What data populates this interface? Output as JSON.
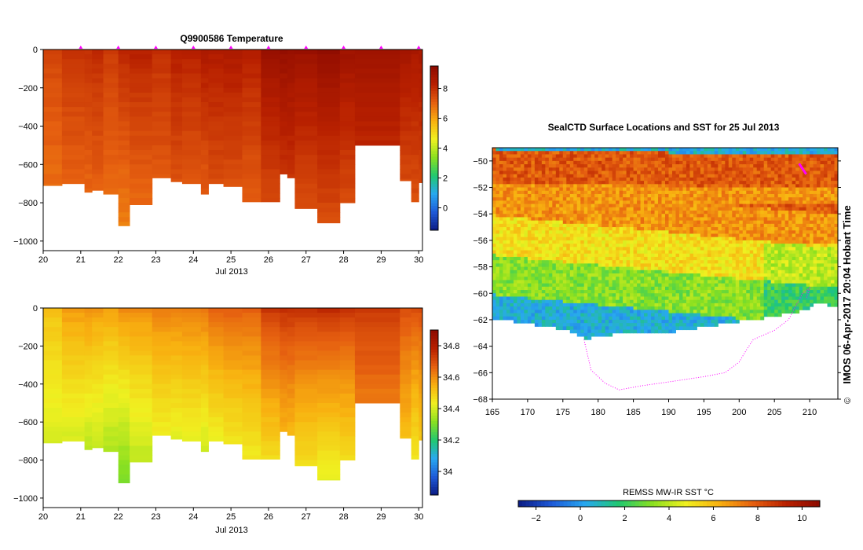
{
  "colors": {
    "colormap": [
      "#0a1a82",
      "#1e5ad8",
      "#28a8f0",
      "#20c870",
      "#8ae020",
      "#f0f020",
      "#f8b010",
      "#e66010",
      "#b82000",
      "#8c0a00"
    ],
    "marker": "#ff00ff",
    "no_data": "#ffffff",
    "frame": "#000000"
  },
  "chart_data": [
    {
      "id": "temperature-section",
      "type": "heatmap",
      "title": "Q9900586  Temperature",
      "xlabel": "Jul 2013",
      "ylabel": "",
      "x_ticks": [
        "20",
        "21",
        "22",
        "23",
        "24",
        "25",
        "26",
        "27",
        "28",
        "29",
        "30"
      ],
      "y_ticks": [
        "0",
        "−200",
        "−400",
        "−600",
        "−800",
        "−1000"
      ],
      "xlim": [
        20,
        30.1
      ],
      "ylim": [
        -1050,
        0
      ],
      "colorbar": {
        "range": [
          -1.5,
          9.5
        ],
        "ticks": [
          "0",
          "2",
          "4",
          "6",
          "8"
        ]
      },
      "profile_markers_day": [
        21,
        22,
        23,
        24,
        25,
        26,
        27,
        28,
        29,
        30
      ],
      "profiles": [
        {
          "start": 20.0,
          "end": 20.5,
          "max_depth": 710,
          "surface": 7.6,
          "bottom": 6.7
        },
        {
          "start": 20.5,
          "end": 21.1,
          "max_depth": 700,
          "surface": 7.9,
          "bottom": 6.9
        },
        {
          "start": 21.1,
          "end": 21.3,
          "max_depth": 745,
          "surface": 8.0,
          "bottom": 6.8
        },
        {
          "start": 21.3,
          "end": 21.6,
          "max_depth": 735,
          "surface": 8.1,
          "bottom": 6.9
        },
        {
          "start": 21.6,
          "end": 22.0,
          "max_depth": 755,
          "surface": 7.8,
          "bottom": 6.8
        },
        {
          "start": 22.0,
          "end": 22.3,
          "max_depth": 920,
          "surface": 8.2,
          "bottom": 6.6
        },
        {
          "start": 22.3,
          "end": 22.9,
          "max_depth": 810,
          "surface": 8.3,
          "bottom": 6.8
        },
        {
          "start": 22.9,
          "end": 23.4,
          "max_depth": 670,
          "surface": 8.0,
          "bottom": 7.0
        },
        {
          "start": 23.4,
          "end": 23.7,
          "max_depth": 690,
          "surface": 8.4,
          "bottom": 7.1
        },
        {
          "start": 23.7,
          "end": 24.2,
          "max_depth": 700,
          "surface": 8.3,
          "bottom": 7.0
        },
        {
          "start": 24.2,
          "end": 24.4,
          "max_depth": 755,
          "surface": 8.6,
          "bottom": 6.9
        },
        {
          "start": 24.4,
          "end": 24.8,
          "max_depth": 700,
          "surface": 8.5,
          "bottom": 7.2
        },
        {
          "start": 24.8,
          "end": 25.3,
          "max_depth": 715,
          "surface": 8.6,
          "bottom": 7.1
        },
        {
          "start": 25.3,
          "end": 25.8,
          "max_depth": 795,
          "surface": 8.4,
          "bottom": 7.0
        },
        {
          "start": 25.8,
          "end": 26.3,
          "max_depth": 795,
          "surface": 9.1,
          "bottom": 7.3
        },
        {
          "start": 26.3,
          "end": 26.5,
          "max_depth": 650,
          "surface": 9.2,
          "bottom": 7.5
        },
        {
          "start": 26.5,
          "end": 26.7,
          "max_depth": 670,
          "surface": 9.2,
          "bottom": 7.5
        },
        {
          "start": 26.7,
          "end": 27.3,
          "max_depth": 830,
          "surface": 9.1,
          "bottom": 7.3
        },
        {
          "start": 27.3,
          "end": 27.9,
          "max_depth": 905,
          "surface": 9.3,
          "bottom": 7.4
        },
        {
          "start": 27.9,
          "end": 28.3,
          "max_depth": 800,
          "surface": 9.0,
          "bottom": 7.3
        },
        {
          "start": 28.3,
          "end": 29.5,
          "max_depth": 500,
          "surface": 9.0,
          "bottom": 7.6
        },
        {
          "start": 29.5,
          "end": 29.8,
          "max_depth": 685,
          "surface": 8.8,
          "bottom": 7.2
        },
        {
          "start": 29.8,
          "end": 30.0,
          "max_depth": 795,
          "surface": 8.7,
          "bottom": 7.2
        },
        {
          "start": 30.0,
          "end": 30.1,
          "max_depth": 695,
          "surface": 8.7,
          "bottom": 7.3
        }
      ]
    },
    {
      "id": "salinity-section",
      "type": "heatmap",
      "title": "",
      "xlabel": "Jul 2013",
      "ylabel": "",
      "x_ticks": [
        "20",
        "21",
        "22",
        "23",
        "24",
        "25",
        "26",
        "27",
        "28",
        "29",
        "30"
      ],
      "y_ticks": [
        "0",
        "−200",
        "−400",
        "−600",
        "−800",
        "−1000"
      ],
      "xlim": [
        20,
        30.1
      ],
      "ylim": [
        -1050,
        0
      ],
      "colorbar": {
        "range": [
          33.85,
          34.9
        ],
        "ticks": [
          "34",
          "34.2",
          "34.4",
          "34.6",
          "34.8"
        ]
      },
      "profiles": [
        {
          "start": 20.0,
          "end": 20.5,
          "max_depth": 710,
          "surface": 34.52,
          "bottom": 34.38
        },
        {
          "start": 20.5,
          "end": 21.1,
          "max_depth": 700,
          "surface": 34.58,
          "bottom": 34.36
        },
        {
          "start": 21.1,
          "end": 21.3,
          "max_depth": 745,
          "surface": 34.6,
          "bottom": 34.33
        },
        {
          "start": 21.3,
          "end": 21.6,
          "max_depth": 735,
          "surface": 34.58,
          "bottom": 34.34
        },
        {
          "start": 21.6,
          "end": 22.0,
          "max_depth": 755,
          "surface": 34.57,
          "bottom": 34.32
        },
        {
          "start": 22.0,
          "end": 22.3,
          "max_depth": 920,
          "surface": 34.6,
          "bottom": 34.3
        },
        {
          "start": 22.3,
          "end": 22.9,
          "max_depth": 810,
          "surface": 34.6,
          "bottom": 34.35
        },
        {
          "start": 22.9,
          "end": 23.4,
          "max_depth": 670,
          "surface": 34.62,
          "bottom": 34.38
        },
        {
          "start": 23.4,
          "end": 23.7,
          "max_depth": 690,
          "surface": 34.62,
          "bottom": 34.37
        },
        {
          "start": 23.7,
          "end": 24.2,
          "max_depth": 700,
          "surface": 34.63,
          "bottom": 34.37
        },
        {
          "start": 24.2,
          "end": 24.4,
          "max_depth": 755,
          "surface": 34.64,
          "bottom": 34.35
        },
        {
          "start": 24.4,
          "end": 24.8,
          "max_depth": 700,
          "surface": 34.66,
          "bottom": 34.38
        },
        {
          "start": 24.8,
          "end": 25.3,
          "max_depth": 715,
          "surface": 34.67,
          "bottom": 34.4
        },
        {
          "start": 25.3,
          "end": 25.8,
          "max_depth": 795,
          "surface": 34.67,
          "bottom": 34.42
        },
        {
          "start": 25.8,
          "end": 26.3,
          "max_depth": 795,
          "surface": 34.74,
          "bottom": 34.44
        },
        {
          "start": 26.3,
          "end": 26.5,
          "max_depth": 650,
          "surface": 34.75,
          "bottom": 34.48
        },
        {
          "start": 26.5,
          "end": 26.7,
          "max_depth": 670,
          "surface": 34.75,
          "bottom": 34.47
        },
        {
          "start": 26.7,
          "end": 27.3,
          "max_depth": 830,
          "surface": 34.75,
          "bottom": 34.44
        },
        {
          "start": 27.3,
          "end": 27.9,
          "max_depth": 905,
          "surface": 34.76,
          "bottom": 34.42
        },
        {
          "start": 27.9,
          "end": 28.3,
          "max_depth": 800,
          "surface": 34.74,
          "bottom": 34.44
        },
        {
          "start": 28.3,
          "end": 29.5,
          "max_depth": 500,
          "surface": 34.74,
          "bottom": 34.56
        },
        {
          "start": 29.5,
          "end": 29.8,
          "max_depth": 685,
          "surface": 34.7,
          "bottom": 34.48
        },
        {
          "start": 29.8,
          "end": 30.0,
          "max_depth": 795,
          "surface": 34.7,
          "bottom": 34.42
        },
        {
          "start": 30.0,
          "end": 30.1,
          "max_depth": 695,
          "surface": 34.7,
          "bottom": 34.46
        }
      ]
    },
    {
      "id": "sst-map",
      "type": "heatmap",
      "title": "SealCTD Surface Locations and SST for 25 Jul 2013",
      "xlabel": "",
      "ylabel": "",
      "x_ticks": [
        "165",
        "170",
        "175",
        "180",
        "185",
        "190",
        "195",
        "200",
        "205",
        "210"
      ],
      "y_ticks": [
        "−50",
        "−52",
        "−54",
        "−56",
        "−58",
        "−60",
        "−62",
        "−64",
        "−66",
        "−68"
      ],
      "xlim": [
        165,
        214
      ],
      "ylim": [
        -68,
        -49
      ],
      "side_label": "IMOS 06-Apr-2017 20:04 Hobart Time",
      "copyright_symbol": "©",
      "colorbar": {
        "label": "REMSS MW-IR SST °C",
        "range": [
          -2.8,
          10.8
        ],
        "ticks": [
          "−2",
          "0",
          "2",
          "4",
          "6",
          "8",
          "10"
        ]
      },
      "sst_zones": [
        {
          "lat_from": -49,
          "lat_to": -51.5,
          "sst": 8.0
        },
        {
          "lat_from": -51.5,
          "lat_to": -54,
          "sst": 6.8
        },
        {
          "lat_from": -54,
          "lat_to": -57,
          "sst": 5.2
        },
        {
          "lat_from": -57,
          "lat_to": -60,
          "sst": 3.2
        },
        {
          "lat_from": -60,
          "lat_to": -62,
          "sst": 0.5
        }
      ],
      "ice_edge": [
        [
          165,
          -61.8
        ],
        [
          170,
          -62.2
        ],
        [
          175,
          -62.6
        ],
        [
          178,
          -63.3
        ],
        [
          182,
          -63.0
        ],
        [
          186,
          -62.9
        ],
        [
          190,
          -62.8
        ],
        [
          195,
          -62.4
        ],
        [
          200,
          -62.0
        ],
        [
          205,
          -61.6
        ],
        [
          209,
          -61.2
        ],
        [
          211,
          -60.6
        ],
        [
          214,
          -61.0
        ]
      ],
      "seal_track": [
        [
          178,
          -63.5
        ],
        [
          179,
          -65.8
        ],
        [
          181,
          -66.8
        ],
        [
          183,
          -67.3
        ],
        [
          186,
          -67.0
        ],
        [
          190,
          -66.7
        ],
        [
          195,
          -66.3
        ],
        [
          198,
          -66.0
        ],
        [
          200,
          -65.2
        ],
        [
          201,
          -64.3
        ],
        [
          202,
          -63.5
        ],
        [
          205,
          -62.8
        ],
        [
          207,
          -62.0
        ],
        [
          208,
          -61.0
        ],
        [
          209,
          -60.0
        ],
        [
          210,
          -59.6
        ],
        [
          209.5,
          -60.4
        ]
      ],
      "seal_position_track": [
        [
          208.5,
          -50.2
        ],
        [
          209.0,
          -50.6
        ],
        [
          209.5,
          -51.0
        ]
      ]
    }
  ]
}
